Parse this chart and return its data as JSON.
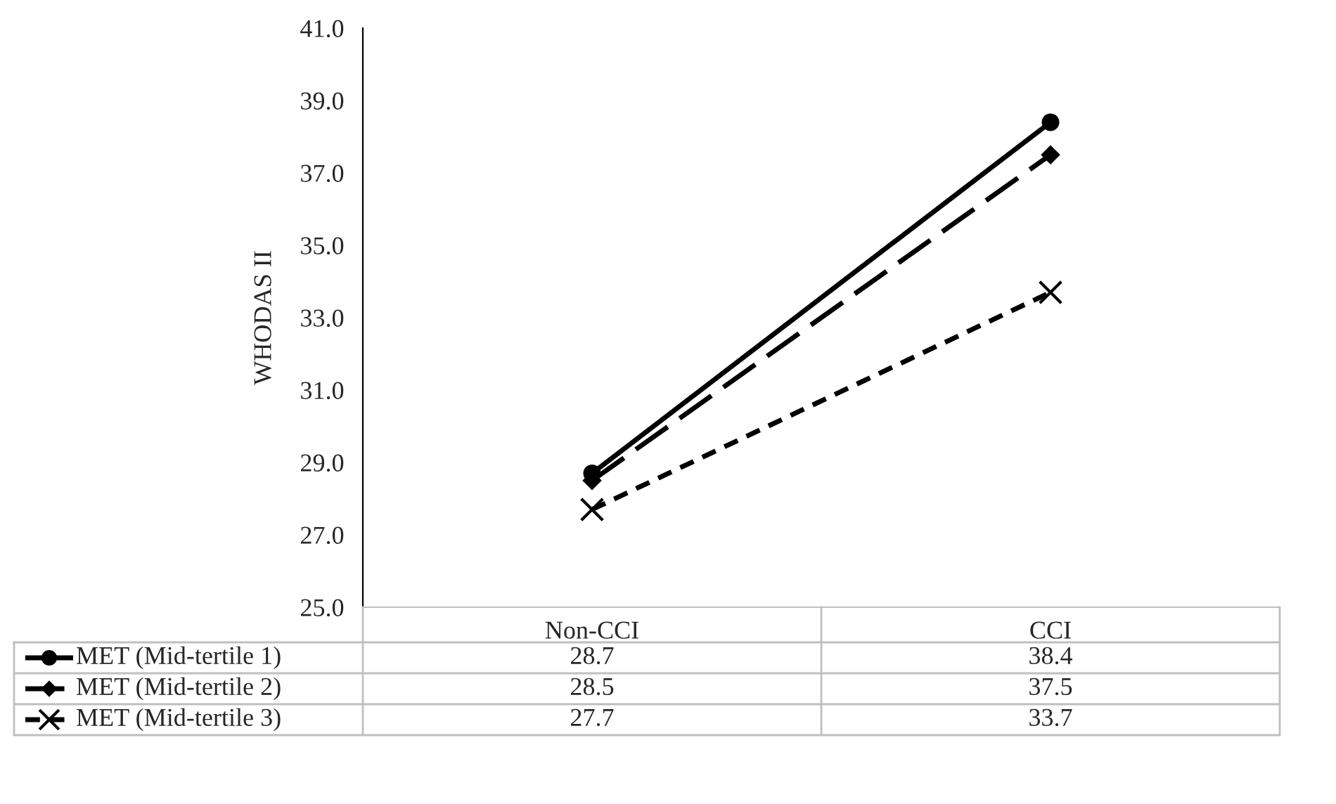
{
  "chart_data": {
    "type": "line",
    "ylabel": "WHODAS II",
    "categories": [
      "Non-CCI",
      "CCI"
    ],
    "series": [
      {
        "name": "MET (Mid-tertile 1)",
        "color": "#000000",
        "values": [
          28.7,
          38.4
        ],
        "marker": "circle",
        "line_style": "solid"
      },
      {
        "name": "MET (Mid-tertile 2)",
        "color": "#000000",
        "values": [
          28.5,
          37.5
        ],
        "marker": "diamond",
        "line_style": "dashed"
      },
      {
        "name": "MET (Mid-tertile 3)",
        "color": "#000000",
        "values": [
          27.7,
          33.7
        ],
        "marker": "cross",
        "line_style": "dotted"
      }
    ],
    "ylim": [
      25,
      41
    ],
    "yticks": [
      {
        "value": 25,
        "label": "25.0"
      },
      {
        "value": 27,
        "label": "27.0"
      },
      {
        "value": 29,
        "label": "29.0"
      },
      {
        "value": 31,
        "label": "31.0"
      },
      {
        "value": 33,
        "label": "33.0"
      },
      {
        "value": 35,
        "label": "35.0"
      },
      {
        "value": 37,
        "label": "37.0"
      },
      {
        "value": 39,
        "label": "39.0"
      },
      {
        "value": 41,
        "label": "41.0"
      }
    ],
    "data_labels": true,
    "legend": "bottom",
    "grid": false
  }
}
